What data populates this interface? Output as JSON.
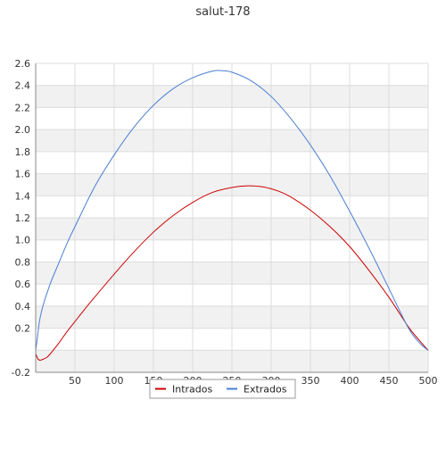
{
  "chart_data": {
    "type": "line",
    "title": "salut-178",
    "xlabel": "",
    "ylabel": "",
    "xlim": [
      0,
      500
    ],
    "ylim": [
      -0.2,
      2.6
    ],
    "x_ticks": [
      50,
      100,
      150,
      200,
      250,
      300,
      350,
      400,
      450,
      500
    ],
    "x_tick_labels": [
      "50",
      "100",
      "150",
      "200",
      "250",
      "300",
      "350",
      "400",
      "450",
      "500"
    ],
    "y_ticks": [
      -0.2,
      0.2,
      0.4,
      0.6,
      0.8,
      1.0,
      1.2,
      1.4,
      1.6,
      1.8,
      2.0,
      2.2,
      2.4,
      2.6
    ],
    "y_tick_labels": [
      "-0.2",
      "0.2",
      "0.4",
      "0.6",
      "0.8",
      "1.0",
      "1.2",
      "1.4",
      "1.6",
      "1.8",
      "2.0",
      "2.2",
      "2.4",
      "2.6"
    ],
    "grid": true,
    "legend_position": "bottom-center",
    "series": [
      {
        "name": "Intrados",
        "color": "#cc0000",
        "x": [
          0,
          3,
          6,
          10,
          15,
          20,
          30,
          40,
          50,
          60,
          75,
          100,
          125,
          150,
          175,
          200,
          225,
          250,
          270,
          290,
          310,
          325,
          350,
          375,
          400,
          425,
          450,
          475,
          490,
          500
        ],
        "y": [
          -0.03,
          -0.08,
          -0.09,
          -0.08,
          -0.06,
          -0.02,
          0.07,
          0.17,
          0.26,
          0.35,
          0.48,
          0.69,
          0.89,
          1.07,
          1.22,
          1.34,
          1.43,
          1.475,
          1.49,
          1.48,
          1.44,
          1.39,
          1.27,
          1.12,
          0.94,
          0.72,
          0.48,
          0.21,
          0.08,
          0.0
        ]
      },
      {
        "name": "Extrados",
        "color": "#4a7fd4",
        "x": [
          0,
          2,
          5,
          10,
          15,
          20,
          30,
          40,
          50,
          75,
          100,
          125,
          150,
          175,
          200,
          225,
          235,
          250,
          275,
          300,
          325,
          350,
          375,
          400,
          425,
          450,
          475,
          490,
          500
        ],
        "y": [
          0.0,
          0.1,
          0.27,
          0.42,
          0.53,
          0.63,
          0.8,
          0.97,
          1.12,
          1.48,
          1.77,
          2.02,
          2.22,
          2.37,
          2.47,
          2.53,
          2.535,
          2.52,
          2.44,
          2.3,
          2.1,
          1.86,
          1.58,
          1.26,
          0.92,
          0.56,
          0.2,
          0.06,
          0.0
        ]
      }
    ]
  }
}
